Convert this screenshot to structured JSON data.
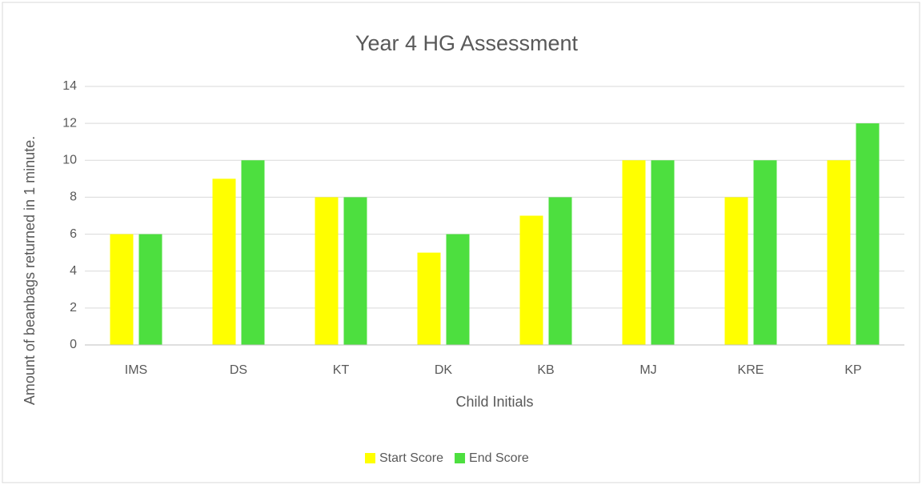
{
  "chart_data": {
    "type": "bar",
    "title": "Year 4 HG Assessment",
    "x_label": "Child Initials",
    "y_label": "Amount of beanbags returned in 1 minute.",
    "categories": [
      "IMS",
      "DS",
      "KT",
      "DK",
      "KB",
      "MJ",
      "KRE",
      "KP"
    ],
    "series": [
      {
        "name": "Start Score",
        "color": "#ffff00",
        "values": [
          6,
          9,
          8,
          5,
          7,
          10,
          8,
          10
        ]
      },
      {
        "name": "End Score",
        "color": "#4ddf3f",
        "values": [
          6,
          10,
          8,
          6,
          8,
          10,
          10,
          12
        ]
      }
    ],
    "ylim": [
      0,
      14
    ],
    "yticks": [
      0,
      2,
      4,
      6,
      8,
      10,
      12,
      14
    ],
    "grid": true,
    "legend": "bottom"
  }
}
